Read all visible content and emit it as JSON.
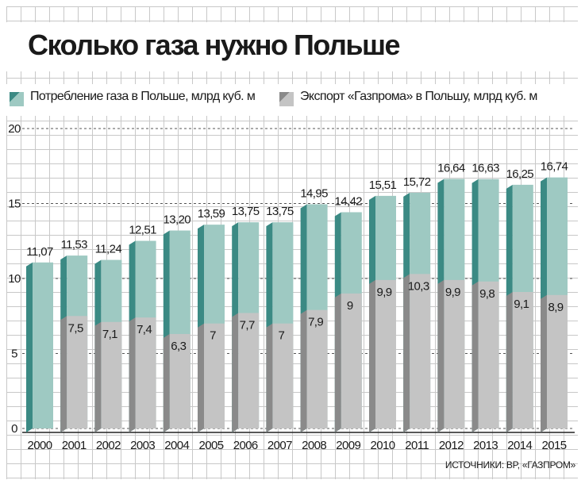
{
  "title": "Сколько газа нужно Польше",
  "source": "ИСТОЧНИКИ: BP, «ГАЗПРОМ»",
  "legend": {
    "consumption": "Потребление газа в Польше, млрд куб. м",
    "export": "Экспорт «Газпрома» в Польшу, млрд куб. м"
  },
  "colors": {
    "consumption_front": "#9ec9c2",
    "consumption_side": "#3b8a84",
    "export_front": "#c4c4c4",
    "export_side": "#8a8a8a",
    "text": "#1a1a1a"
  },
  "chart_data": {
    "type": "bar",
    "title": "Сколько газа нужно Польше",
    "categories": [
      "2000",
      "2001",
      "2002",
      "2003",
      "2004",
      "2005",
      "2006",
      "2007",
      "2008",
      "2009",
      "2010",
      "2011",
      "2012",
      "2013",
      "2014",
      "2015"
    ],
    "series": [
      {
        "name": "Потребление газа в Польше, млрд куб. м",
        "values": [
          11.07,
          11.53,
          11.24,
          12.51,
          13.2,
          13.59,
          13.75,
          13.75,
          14.95,
          14.42,
          15.51,
          15.72,
          16.64,
          16.63,
          16.25,
          16.74
        ],
        "labels": [
          "11,07",
          "11,53",
          "11,24",
          "12,51",
          "13,20",
          "13,59",
          "13,75",
          "13,75",
          "14,95",
          "14,42",
          "15,51",
          "15,72",
          "16,64",
          "16,63",
          "16,25",
          "16,74"
        ]
      },
      {
        "name": "Экспорт «Газпрома» в Польшу, млрд куб. м",
        "values": [
          null,
          7.5,
          7.1,
          7.4,
          6.3,
          7,
          7.7,
          7,
          7.9,
          9,
          9.9,
          10.3,
          9.9,
          9.8,
          9.1,
          8.9
        ],
        "labels": [
          "",
          "7,5",
          "7,1",
          "7,4",
          "6,3",
          "7",
          "7,7",
          "7",
          "7,9",
          "9",
          "9,9",
          "10,3",
          "9,9",
          "9,8",
          "9,1",
          "8,9"
        ]
      }
    ],
    "yticks": [
      0,
      5,
      10,
      15,
      20
    ],
    "ylim": [
      0,
      20
    ],
    "grid": true,
    "legend_position": "top",
    "xlabel": "",
    "ylabel": ""
  }
}
